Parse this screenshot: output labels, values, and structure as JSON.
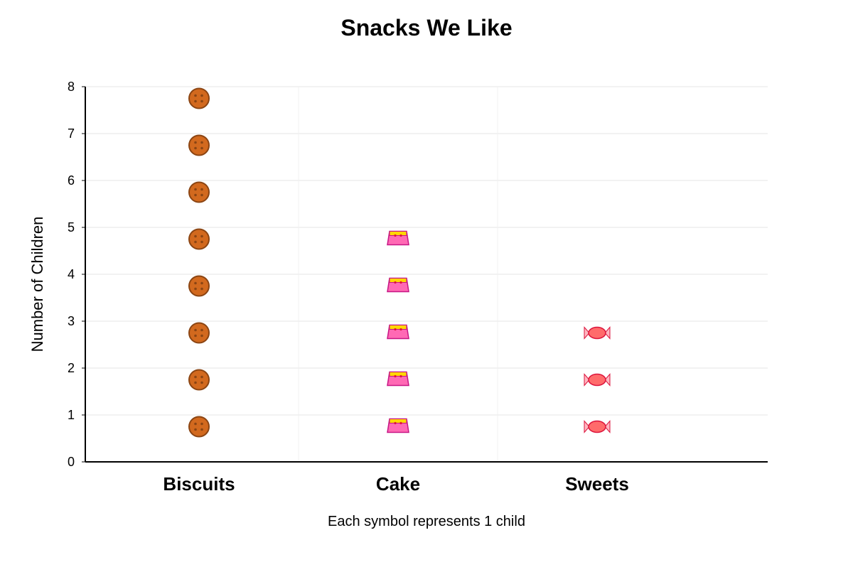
{
  "chart_data": {
    "type": "pictograph",
    "title": "Snacks We Like",
    "ylabel": "Number of Children",
    "note": "Each symbol represents 1 child",
    "categories": [
      "Biscuits",
      "Cake",
      "Sweets"
    ],
    "values": [
      8,
      5,
      3
    ],
    "icons": [
      "cookie-icon",
      "cake-icon",
      "sweet-icon"
    ],
    "ylim": [
      0,
      8
    ],
    "yticks": [
      0,
      1,
      2,
      3,
      4,
      5,
      6,
      7,
      8
    ],
    "grid": true,
    "colors": {
      "cookie_fill": "#d2691e",
      "cookie_stroke": "#8b4513",
      "cake_base": "#ff69b4",
      "cake_icing": "#ffd700",
      "cake_stroke": "#c71585",
      "sweet_fill": "#ff6b6b",
      "sweet_stroke": "#dc143c",
      "sweet_wrapper": "#ffb6c1",
      "grid": "#e6e6e6",
      "axis": "#000000"
    }
  }
}
